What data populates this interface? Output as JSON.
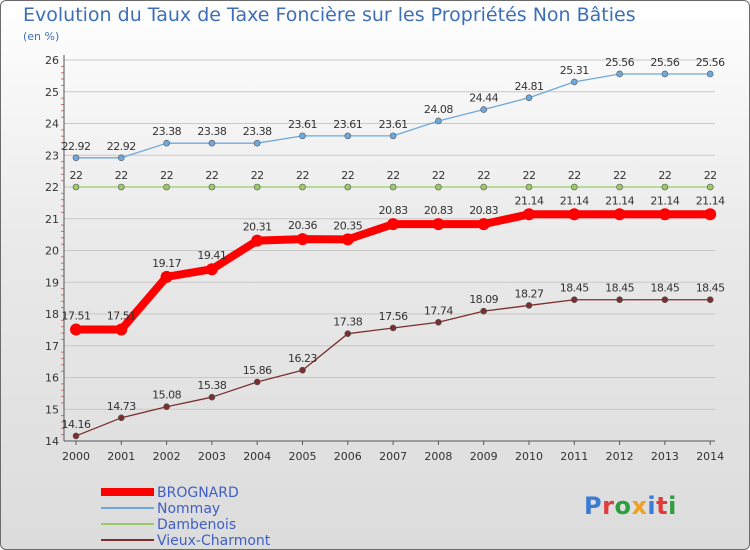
{
  "title": "Evolution du Taux de Taxe Foncière sur les Propriétés Non Bâties",
  "subtitle": "(en %)",
  "logo_text": "Proxiti",
  "chart_data": {
    "type": "line",
    "title": "Evolution du Taux de Taxe Foncière sur les Propriétés Non Bâties",
    "ylabel": "(en %)",
    "xlabel": "",
    "ylim": [
      14,
      26
    ],
    "yticks": [
      "14",
      "15",
      "16",
      "17",
      "18",
      "19",
      "20",
      "21",
      "22",
      "23",
      "24",
      "25",
      "26"
    ],
    "x": [
      "2000",
      "2001",
      "2002",
      "2003",
      "2004",
      "2005",
      "2006",
      "2007",
      "2008",
      "2009",
      "2010",
      "2011",
      "2012",
      "2013",
      "2014"
    ],
    "grid": "horizontal",
    "legend_position": "bottom-left",
    "series": [
      {
        "name": "BROGNARD",
        "color": "#ff0000",
        "values": [
          17.51,
          17.51,
          19.17,
          19.41,
          20.31,
          20.36,
          20.35,
          20.83,
          20.83,
          20.83,
          21.14,
          21.14,
          21.14,
          21.14,
          21.14
        ],
        "labels": [
          "17.51",
          "17.51",
          "19.17",
          "19.41",
          "20.31",
          "20.36",
          "20.35",
          "20.83",
          "20.83",
          "20.83",
          "21.14",
          "21.14",
          "21.14",
          "21.14",
          "21.14"
        ]
      },
      {
        "name": "Nommay",
        "color": "#6fa8dc",
        "values": [
          22.92,
          22.92,
          23.38,
          23.38,
          23.38,
          23.61,
          23.61,
          23.61,
          24.08,
          24.44,
          24.81,
          25.31,
          25.56,
          25.56,
          25.56
        ],
        "labels": [
          "22.92",
          "22.92",
          "23.38",
          "23.38",
          "23.38",
          "23.61",
          "23.61",
          "23.61",
          "24.08",
          "24.44",
          "24.81",
          "25.31",
          "25.56",
          "25.56",
          "25.56"
        ]
      },
      {
        "name": "Dambenois",
        "color": "#99cc66",
        "values": [
          22,
          22,
          22,
          22,
          22,
          22,
          22,
          22,
          22,
          22,
          22,
          22,
          22,
          22,
          22
        ],
        "labels": [
          "22",
          "22",
          "22",
          "22",
          "22",
          "22",
          "22",
          "22",
          "22",
          "22",
          "22",
          "22",
          "22",
          "22",
          "22"
        ]
      },
      {
        "name": "Vieux-Charmont",
        "color": "#7a2e2e",
        "values": [
          14.16,
          14.73,
          15.08,
          15.38,
          15.86,
          16.23,
          17.38,
          17.56,
          17.74,
          18.09,
          18.27,
          18.45,
          18.45,
          18.45,
          18.45
        ],
        "labels": [
          "14.16",
          "14.73",
          "15.08",
          "15.38",
          "15.86",
          "16.23",
          "17.38",
          "17.56",
          "17.74",
          "18.09",
          "18.27",
          "18.45",
          "18.45",
          "18.45",
          "18.45"
        ]
      }
    ]
  }
}
